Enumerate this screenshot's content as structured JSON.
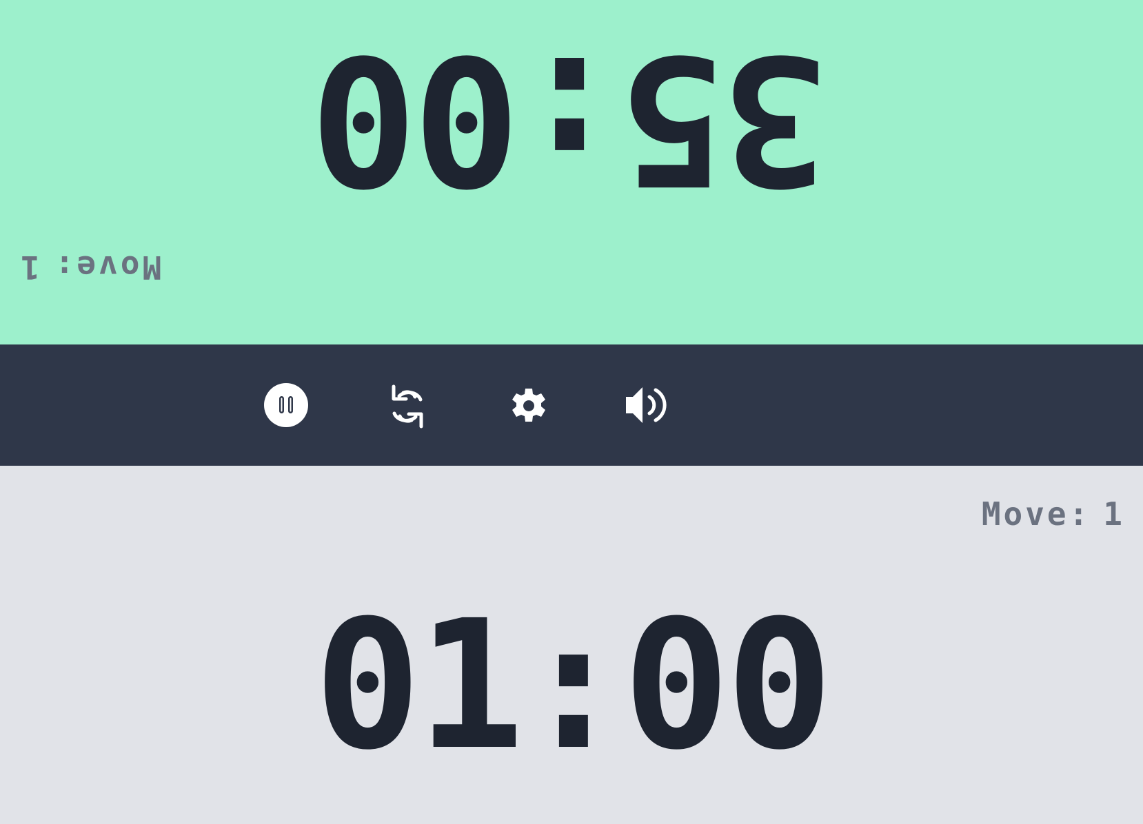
{
  "colors": {
    "top_panel_bg": "#9df0cc",
    "toolbar_bg": "#2f3749",
    "bottom_panel_bg": "#e1e3e8",
    "time_text": "#1e2430",
    "move_text": "#6b7280",
    "icon": "#ffffff"
  },
  "top_player": {
    "time": "35:00",
    "move_label": "Move:",
    "move_count": "1",
    "orientation": "rotated-180",
    "active": true
  },
  "bottom_player": {
    "time": "01:00",
    "move_label": "Move:",
    "move_count": "1",
    "orientation": "normal",
    "active": false
  },
  "toolbar": {
    "buttons": [
      {
        "name": "pause",
        "icon": "pause-circle-icon"
      },
      {
        "name": "reset",
        "icon": "refresh-icon"
      },
      {
        "name": "settings",
        "icon": "gear-icon"
      },
      {
        "name": "sound",
        "icon": "volume-icon"
      }
    ]
  }
}
